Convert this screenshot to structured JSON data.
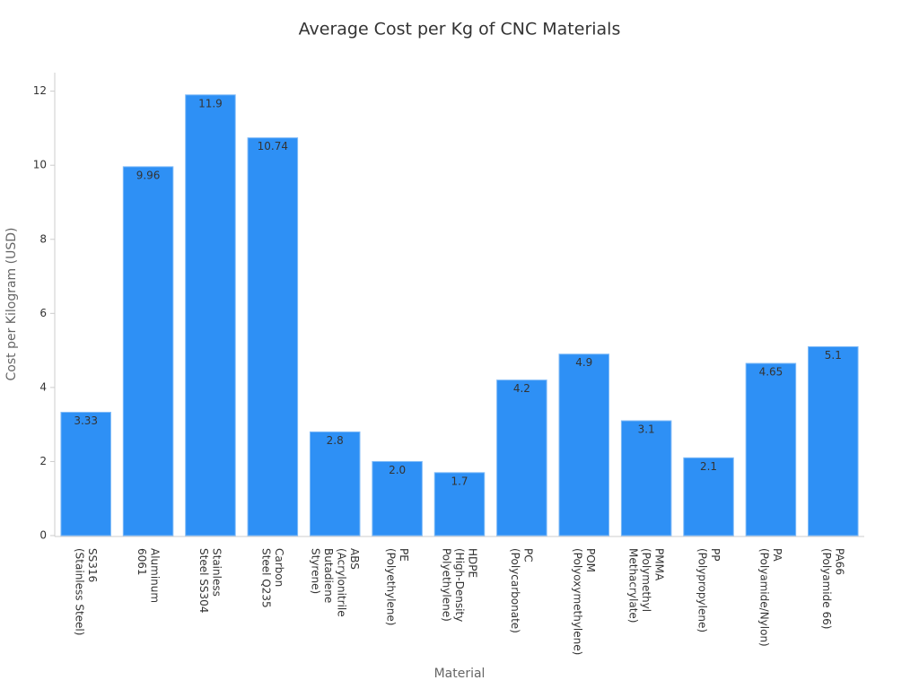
{
  "chart_data": {
    "type": "bar",
    "title": "Average Cost per Kg of CNC Materials",
    "xlabel": "Material",
    "ylabel": "Cost per Kilogram (USD)",
    "categories": [
      [
        "SS316",
        "(Stainless Steel)"
      ],
      [
        "Aluminum",
        "6061"
      ],
      [
        "Stainless",
        "Steel SS304"
      ],
      [
        "Carbon",
        "Steel Q235"
      ],
      [
        "ABS",
        "(Acrylonitrile",
        "Butadiene",
        "Styrene)"
      ],
      [
        "PE",
        "(Polyethylene)"
      ],
      [
        "HDPE",
        "(High-Density",
        "Polyethylene)"
      ],
      [
        "PC",
        "(Polycarbonate)"
      ],
      [
        "POM",
        "(Polyoxymethylene)"
      ],
      [
        "PMMA",
        "(Polymethyl",
        "Methacrylate)"
      ],
      [
        "PP",
        "(Polypropylene)"
      ],
      [
        "PA",
        "(Polyamide/Nylon)"
      ],
      [
        "PA66",
        "(Polyamide 66)"
      ]
    ],
    "values": [
      3.33,
      9.96,
      11.9,
      10.74,
      2.8,
      2.0,
      1.7,
      4.2,
      4.9,
      3.1,
      2.1,
      4.65,
      5.1
    ],
    "value_labels": [
      "3.33",
      "9.96",
      "11.9",
      "10.74",
      "2.8",
      "2.0",
      "1.7",
      "4.2",
      "4.9",
      "3.1",
      "2.1",
      "4.65",
      "5.1"
    ],
    "color": "#2e90f5",
    "ylim": [
      0,
      12.5
    ],
    "yticks": [
      0,
      2,
      4,
      6,
      8,
      10,
      12
    ],
    "grid": false
  }
}
